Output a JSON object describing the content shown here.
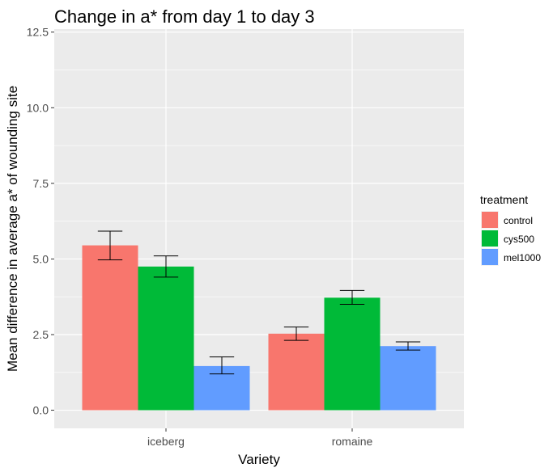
{
  "chart_data": {
    "type": "bar",
    "title": "Change in a* from day 1 to day 3",
    "xlabel": "Variety",
    "ylabel": "Mean difference in average a* of wounding site",
    "categories": [
      "iceberg",
      "romaine"
    ],
    "ylim": [
      -0.6,
      12.6
    ],
    "yticks": [
      0.0,
      2.5,
      5.0,
      7.5,
      10.0,
      12.5
    ],
    "ytick_labels": [
      "0.0",
      "2.5",
      "5.0",
      "7.5",
      "10.0",
      "12.5"
    ],
    "grid": true,
    "legend": {
      "title": "treatment",
      "position": "right"
    },
    "series": [
      {
        "name": "control",
        "color": "#F8766D",
        "values": [
          5.45,
          2.53
        ],
        "err_low": [
          4.97,
          2.31
        ],
        "err_high": [
          5.92,
          2.75
        ]
      },
      {
        "name": "cys500",
        "color": "#00BA38",
        "values": [
          4.75,
          3.72
        ],
        "err_low": [
          4.4,
          3.5
        ],
        "err_high": [
          5.1,
          3.96
        ]
      },
      {
        "name": "mel1000",
        "color": "#619CFF",
        "values": [
          1.46,
          2.12
        ],
        "err_low": [
          1.2,
          1.99
        ],
        "err_high": [
          1.76,
          2.26
        ]
      }
    ]
  }
}
